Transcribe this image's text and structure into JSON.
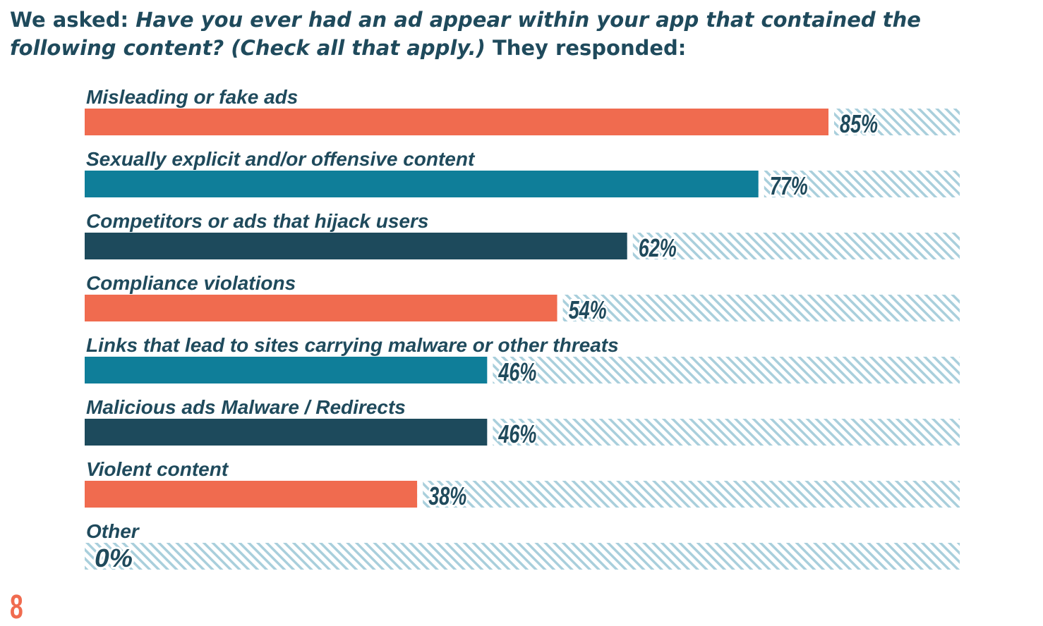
{
  "header": {
    "lead": "We asked: ",
    "question": "Have you ever had an ad appear within your app that contained the following content? (Check all that apply.)",
    "tail": " They responded:"
  },
  "page_number": "8",
  "colors": {
    "coral": "#f06b4f",
    "teal": "#0f7e99",
    "navy": "#1d4a5c",
    "hatch": "#a9cfdc",
    "text": "#1f4a5c"
  },
  "chart_data": {
    "type": "bar",
    "orientation": "horizontal",
    "categories": [
      "Misleading or fake ads",
      "Sexually explicit and/or offensive content",
      "Competitors or ads that hijack users",
      "Compliance violations",
      "Links that lead to sites carrying malware or other threats",
      "Malicious ads Malware / Redirects",
      "Violent content",
      "Other"
    ],
    "values": [
      85,
      77,
      62,
      54,
      46,
      46,
      38,
      0
    ],
    "value_labels": [
      "85%",
      "77%",
      "62%",
      "54%",
      "46%",
      "46%",
      "38%",
      "0%"
    ],
    "bar_colors": [
      "coral",
      "teal",
      "navy",
      "coral",
      "teal",
      "navy",
      "coral",
      "coral"
    ],
    "xlim": [
      0,
      100
    ],
    "unit": "%",
    "grid": false,
    "legend": "none"
  }
}
